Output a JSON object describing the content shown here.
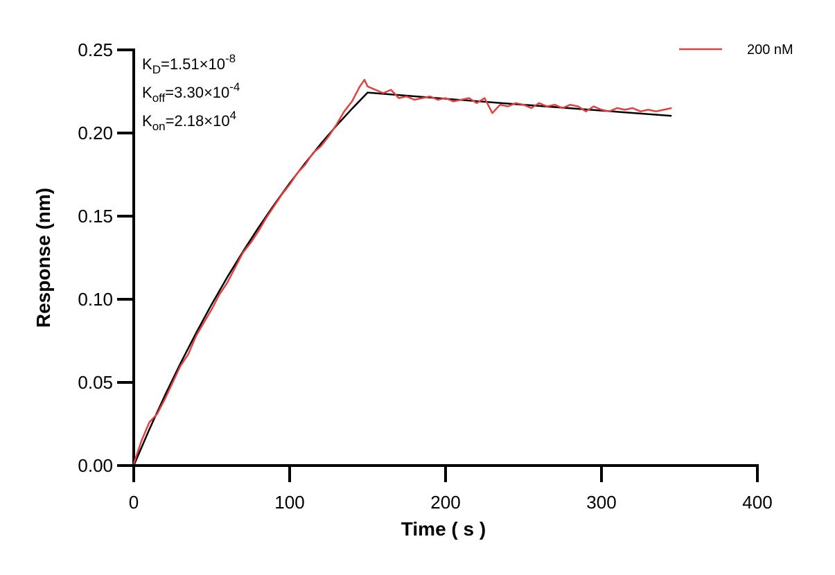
{
  "chart_data": {
    "type": "line",
    "xlabel": "Time ( s )",
    "ylabel": "Response (nm)",
    "xlim": [
      0,
      400
    ],
    "xticks": [
      0,
      100,
      200,
      300,
      400
    ],
    "ylim": [
      0,
      0.25
    ],
    "yticks": [
      {
        "value": 0,
        "label": "0.00"
      },
      {
        "value": 0.05,
        "label": "0.05"
      },
      {
        "value": 0.1,
        "label": "0.10"
      },
      {
        "value": 0.15,
        "label": "0.15"
      },
      {
        "value": 0.2,
        "label": "0.20"
      },
      {
        "value": 0.25,
        "label": "0.25"
      }
    ],
    "legend": "top-right",
    "annotations": [
      {
        "symbol": "K",
        "sub": "D",
        "text": "=1.51×10",
        "sup": "-8"
      },
      {
        "symbol": "K",
        "sub": "off",
        "text": "=3.30×10",
        "sup": "-4"
      },
      {
        "symbol": "K",
        "sub": "on",
        "text": "=2.18×10",
        "sup": "4"
      }
    ],
    "series": [
      {
        "name": "200 nM",
        "color": "#e0403f",
        "x": [
          0,
          5,
          10,
          15,
          20,
          25,
          30,
          35,
          40,
          45,
          50,
          55,
          60,
          65,
          70,
          75,
          80,
          85,
          90,
          95,
          100,
          105,
          110,
          115,
          120,
          125,
          130,
          135,
          140,
          145,
          148,
          150,
          155,
          160,
          165,
          170,
          175,
          180,
          185,
          190,
          195,
          200,
          205,
          210,
          215,
          220,
          225,
          230,
          235,
          240,
          245,
          250,
          255,
          260,
          265,
          270,
          275,
          280,
          285,
          290,
          295,
          300,
          305,
          310,
          315,
          320,
          325,
          330,
          335,
          340,
          345
        ],
        "values": [
          0.001,
          0.015,
          0.026,
          0.031,
          0.04,
          0.05,
          0.06,
          0.067,
          0.078,
          0.086,
          0.094,
          0.103,
          0.11,
          0.119,
          0.128,
          0.134,
          0.141,
          0.149,
          0.156,
          0.163,
          0.169,
          0.176,
          0.181,
          0.188,
          0.192,
          0.198,
          0.205,
          0.213,
          0.219,
          0.228,
          0.232,
          0.228,
          0.226,
          0.224,
          0.226,
          0.221,
          0.222,
          0.22,
          0.221,
          0.222,
          0.22,
          0.221,
          0.219,
          0.22,
          0.221,
          0.218,
          0.221,
          0.212,
          0.217,
          0.216,
          0.218,
          0.217,
          0.215,
          0.218,
          0.216,
          0.217,
          0.215,
          0.217,
          0.216,
          0.213,
          0.216,
          0.214,
          0.213,
          0.215,
          0.214,
          0.215,
          0.213,
          0.214,
          0.213,
          0.214,
          0.215
        ]
      },
      {
        "color": "#000000",
        "x": [
          0,
          10,
          20,
          30,
          40,
          50,
          60,
          70,
          80,
          90,
          100,
          110,
          120,
          130,
          140,
          150,
          200,
          250,
          300,
          345
        ],
        "values": [
          0,
          0.0217,
          0.0422,
          0.0615,
          0.0797,
          0.097,
          0.1133,
          0.1286,
          0.1431,
          0.1568,
          0.1698,
          0.1819,
          0.1935,
          0.2044,
          0.2146,
          0.2243,
          0.2206,
          0.217,
          0.2135,
          0.2103
        ]
      }
    ]
  }
}
